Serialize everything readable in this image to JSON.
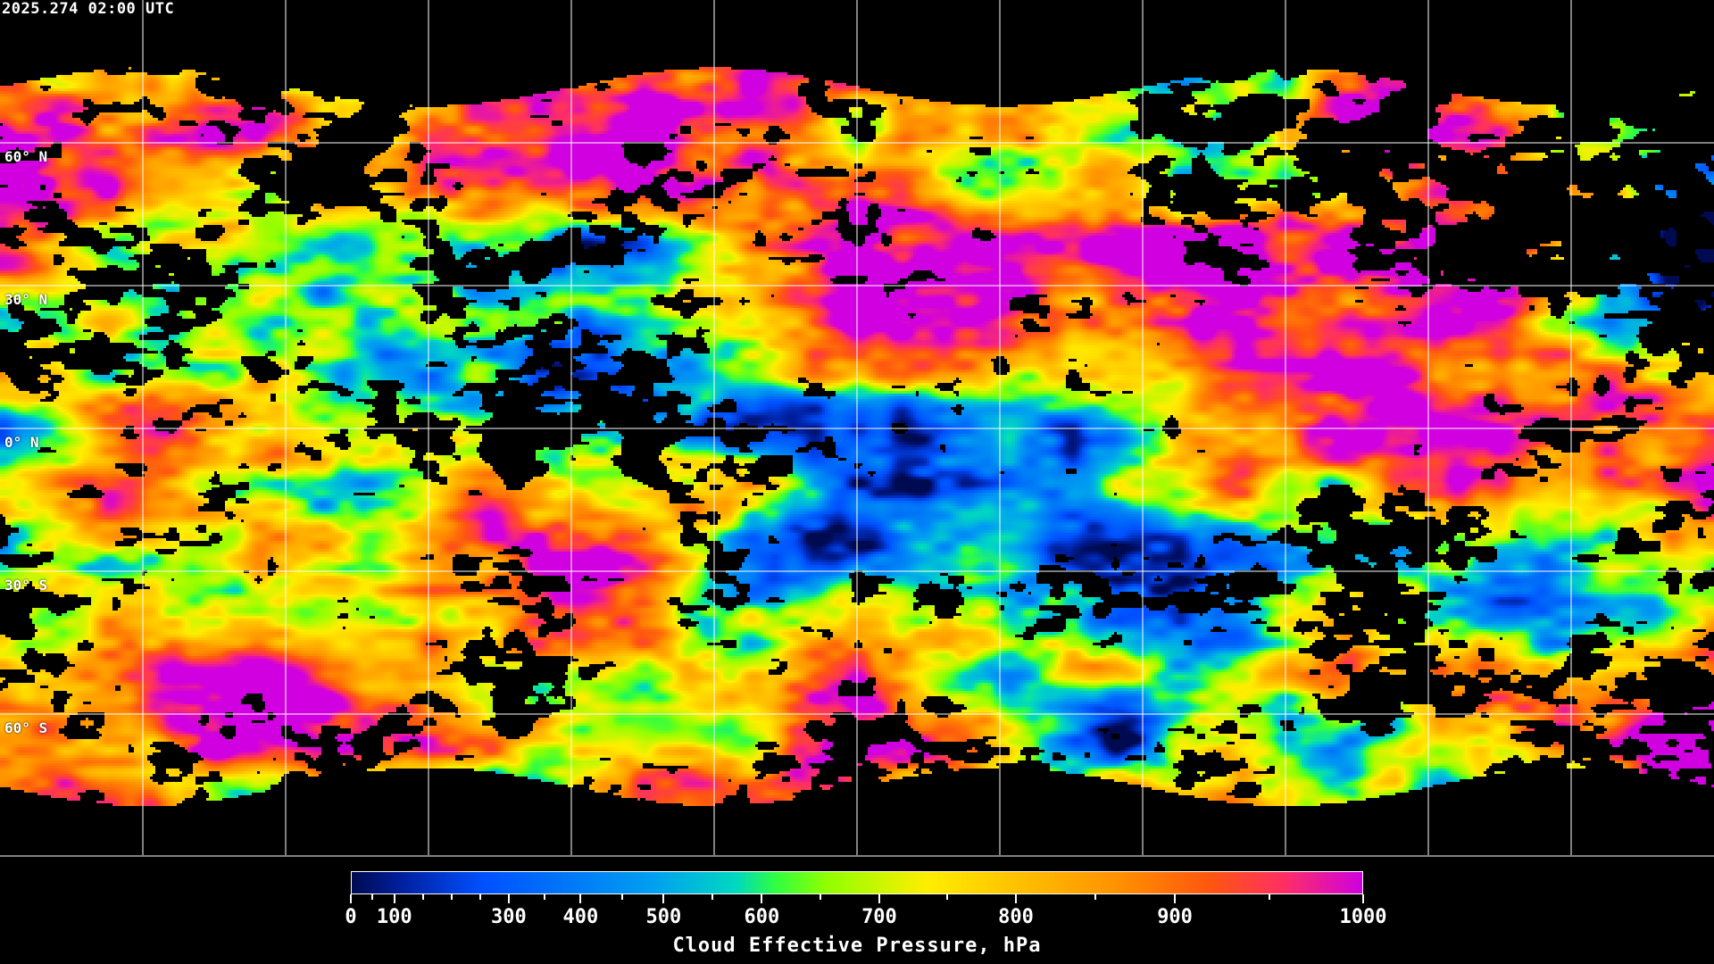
{
  "header": {
    "timestamp": "2025.274 02:00 UTC"
  },
  "map": {
    "projection": "equirectangular",
    "grid_longitudes_deg": [
      -150,
      -120,
      -90,
      -60,
      -30,
      0,
      30,
      60,
      90,
      120,
      150
    ],
    "grid_latitudes_deg": [
      60,
      30,
      0,
      -30,
      -60
    ],
    "lat_labels": [
      "60° N",
      "30° N",
      "0° N",
      "30° S",
      "60° S"
    ],
    "coastlines_color": "#ffffff",
    "no_data_color": "#000000"
  },
  "colorbar": {
    "title": "Cloud Effective Pressure, hPa",
    "tick_labels": [
      "0",
      "100",
      "300",
      "400",
      "500",
      "600",
      "700",
      "800",
      "900",
      "1000"
    ],
    "range": [
      0,
      1000
    ],
    "colormap_colors": [
      "#000a50",
      "#0020a0",
      "#0050ff",
      "#00a0f0",
      "#00d8c0",
      "#30ff40",
      "#90ff00",
      "#ffee00",
      "#ffc000",
      "#ff9000",
      "#ff5510",
      "#ff3060",
      "#d000e0"
    ]
  }
}
